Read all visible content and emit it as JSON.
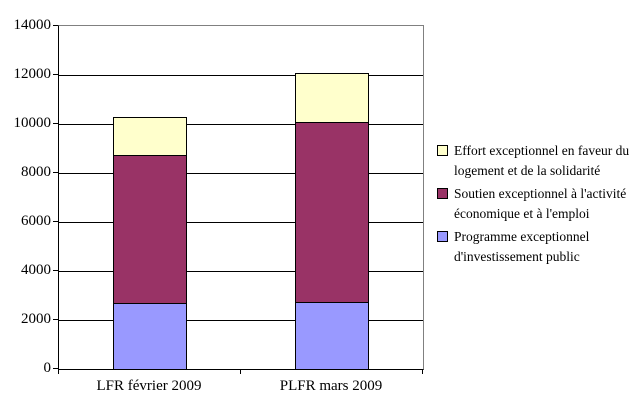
{
  "chart_data": {
    "type": "bar",
    "stacked": true,
    "title": "",
    "categories": [
      "LFR février 2009",
      "PLFR mars 2009"
    ],
    "series": [
      {
        "name": "Programme exceptionnel d'investissement public",
        "color": "#9999FF",
        "values": [
          2700,
          2750
        ]
      },
      {
        "name": "Soutien exceptionnel à l'activité économique et à l'emploi",
        "color": "#993366",
        "values": [
          6050,
          7350
        ]
      },
      {
        "name": "Effort exceptionnel en faveur du logement et de la solidarité",
        "color": "#FFFFCC",
        "values": [
          1550,
          2000
        ]
      }
    ],
    "stack_totals": [
      10300,
      12100
    ],
    "xlabel": "",
    "ylabel": "",
    "ylim": [
      0,
      14000
    ],
    "yticks": [
      0,
      2000,
      4000,
      6000,
      8000,
      10000,
      12000,
      14000
    ],
    "grid": true,
    "legend_position": "right"
  },
  "legend": {
    "entries": [
      {
        "lines": [
          "Effort exceptionnel en faveur du",
          "logement et de la solidarité"
        ],
        "color": "#FFFFCC"
      },
      {
        "lines": [
          "Soutien exceptionnel à l'activité",
          "économique et à l'emploi"
        ],
        "color": "#993366"
      },
      {
        "lines": [
          "Programme exceptionnel",
          "d'investissement public"
        ],
        "color": "#9999FF"
      }
    ]
  },
  "colors": {
    "background": "#FFFFFF",
    "axis": "#000000",
    "gridline": "#000000",
    "plot_border": "#808080",
    "bar_border": "#000000",
    "text": "#000000"
  }
}
